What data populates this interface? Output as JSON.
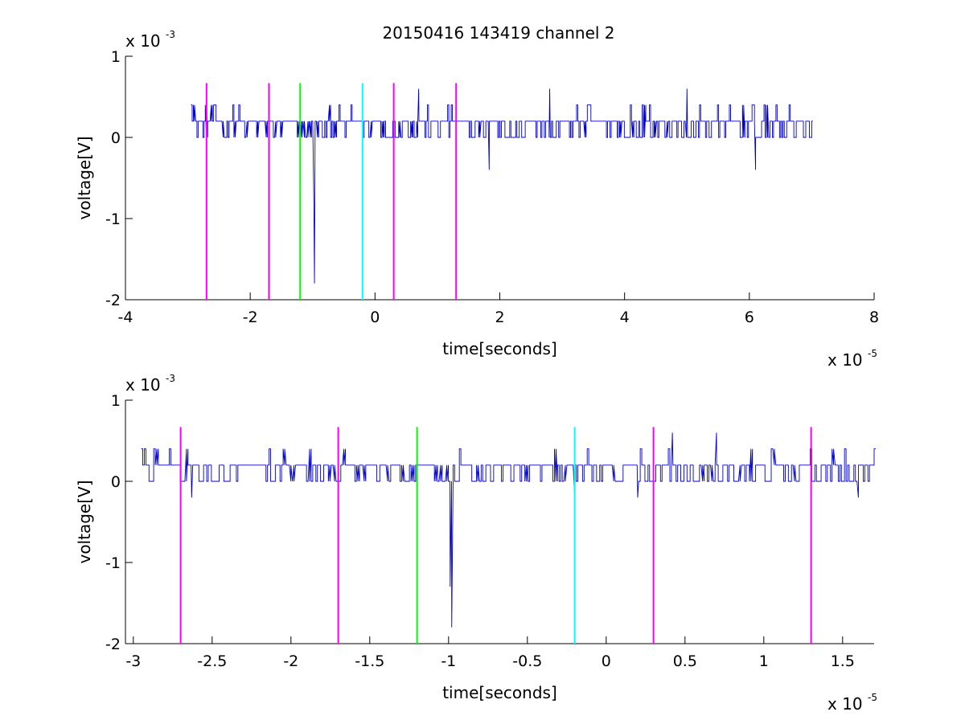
{
  "chart_data": [
    {
      "type": "line",
      "title": "20150416 143419 channel 2",
      "xlabel": "time[seconds]",
      "ylabel": "voltage[V]",
      "x_multiplier_label": "x 10",
      "x_multiplier_exp": "-5",
      "y_multiplier_label": "x 10",
      "y_multiplier_exp": "-3",
      "x_units_scale": 1e-05,
      "y_units_scale": 0.001,
      "xlim": [
        -4,
        8
      ],
      "ylim": [
        -2,
        1
      ],
      "xticks": [
        -4,
        -2,
        0,
        2,
        4,
        6,
        8
      ],
      "xtick_labels": [
        "-4",
        "-2",
        "0",
        "2",
        "4",
        "6",
        "8"
      ],
      "yticks": [
        -2,
        -1,
        0,
        1
      ],
      "ytick_labels": [
        "-2",
        "-1",
        "0",
        "1"
      ],
      "grid": false,
      "series": [
        {
          "color": "#0000c8",
          "description": "noisy voltage trace, baseline ~0.2e-3 V, spike to -1.8e-3 V near t=-1.0e-5 s",
          "x_range": [
            -2.95,
            7.0
          ],
          "baseline": 0.2,
          "levels": [
            0.0,
            0.2,
            0.4
          ],
          "spikes": [
            {
              "x": -0.98,
              "y": -0.8
            },
            {
              "x": -0.97,
              "y": -1.8
            },
            {
              "x": 1.83,
              "y": -0.4
            },
            {
              "x": 6.1,
              "y": -0.4
            },
            {
              "x": 0.7,
              "y": 0.6
            },
            {
              "x": 5.0,
              "y": 0.6
            },
            {
              "x": 2.8,
              "y": 0.6
            }
          ]
        }
      ],
      "vlines": [
        {
          "x": -2.7,
          "color": "#ff00ff",
          "y_top": 0.67
        },
        {
          "x": -1.7,
          "color": "#ff00ff",
          "y_top": 0.67
        },
        {
          "x": -1.2,
          "color": "#00ff00",
          "y_top": 0.67
        },
        {
          "x": -0.2,
          "color": "#00ffff",
          "y_top": 0.67
        },
        {
          "x": 0.3,
          "color": "#ff00ff",
          "y_top": 0.67
        },
        {
          "x": 1.3,
          "color": "#ff00ff",
          "y_top": 0.67
        }
      ]
    },
    {
      "type": "line",
      "title": "",
      "xlabel": "time[seconds]",
      "ylabel": "voltage[V]",
      "x_multiplier_label": "x 10",
      "x_multiplier_exp": "-5",
      "y_multiplier_label": "x 10",
      "y_multiplier_exp": "-3",
      "x_units_scale": 1e-05,
      "y_units_scale": 0.001,
      "xlim": [
        -3.05,
        1.7
      ],
      "ylim": [
        -2,
        1
      ],
      "xticks": [
        -3,
        -2.5,
        -2,
        -1.5,
        -1,
        -0.5,
        0,
        0.5,
        1,
        1.5
      ],
      "xtick_labels": [
        "-3",
        "-2.5",
        "-2",
        "-1.5",
        "-1",
        "-0.5",
        "0",
        "0.5",
        "1",
        "1.5"
      ],
      "yticks": [
        -2,
        -1,
        0,
        1
      ],
      "ytick_labels": [
        "-2",
        "-1",
        "0",
        "1"
      ],
      "grid": false,
      "series": [
        {
          "color": "#0000c8",
          "description": "zoomed noisy voltage trace, baseline ~0.2e-3 V, spike to -1.8e-3 V near t=-0.98e-5 s",
          "x_range": [
            -2.95,
            1.7
          ],
          "baseline": 0.2,
          "levels": [
            0.0,
            0.2,
            0.4
          ],
          "spikes": [
            {
              "x": -0.99,
              "y": -1.3
            },
            {
              "x": -0.98,
              "y": -1.8
            },
            {
              "x": -2.63,
              "y": -0.2
            },
            {
              "x": -0.2,
              "y": -0.2
            },
            {
              "x": 0.2,
              "y": -0.2
            },
            {
              "x": 1.6,
              "y": -0.2
            },
            {
              "x": 0.42,
              "y": 0.6
            },
            {
              "x": 0.7,
              "y": 0.6
            }
          ]
        }
      ],
      "vlines": [
        {
          "x": -2.7,
          "color": "#ff00ff",
          "y_top": 0.67
        },
        {
          "x": -1.7,
          "color": "#ff00ff",
          "y_top": 0.67
        },
        {
          "x": -1.2,
          "color": "#00ff00",
          "y_top": 0.67
        },
        {
          "x": -0.2,
          "color": "#00ffff",
          "y_top": 0.67
        },
        {
          "x": 0.3,
          "color": "#ff00ff",
          "y_top": 0.67
        },
        {
          "x": 1.3,
          "color": "#ff00ff",
          "y_top": 0.67
        }
      ]
    }
  ]
}
